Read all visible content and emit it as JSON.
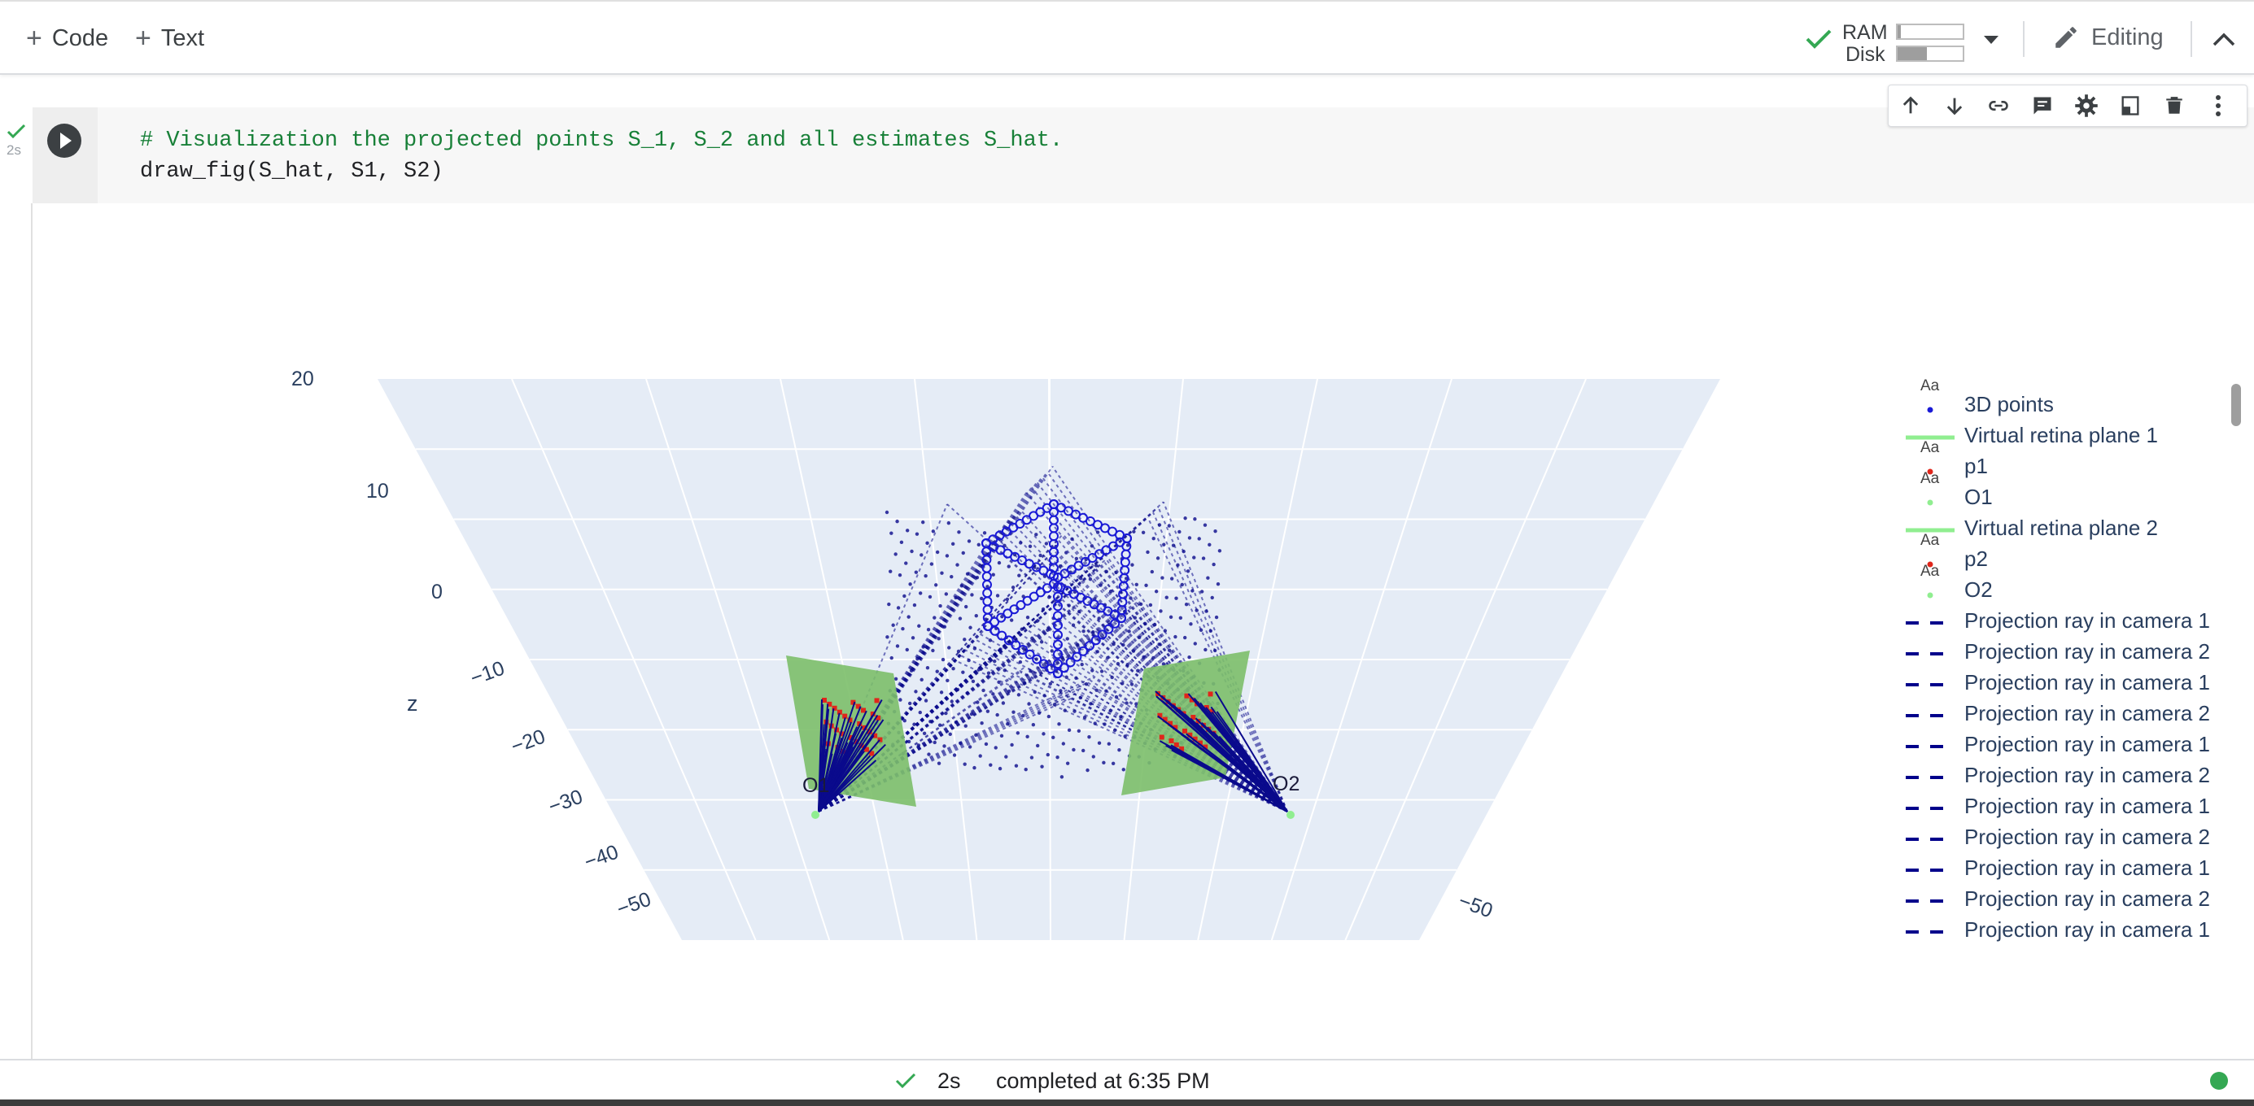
{
  "toolbar": {
    "add_code_label": "Code",
    "add_text_label": "Text",
    "ram_label": "RAM",
    "disk_label": "Disk",
    "ram_usage": 0.05,
    "disk_usage": 0.45,
    "editing_label": "Editing"
  },
  "cell": {
    "exec_time": "2s",
    "code_lines": [
      "# Visualization the projected points S_1, S_2 and all estimates S_hat.",
      "draw_fig(S_hat, S1, S2)"
    ],
    "comment_color": "#188038"
  },
  "plot": {
    "z_axis_title": "z",
    "z_ticks": [
      "20",
      "10",
      "0",
      "−10",
      "−20",
      "−30",
      "−40",
      "−50"
    ],
    "x_tick_right": "−50",
    "camera_labels": [
      "O1",
      "O2"
    ],
    "colors": {
      "scene_bg": "#e5ecf6",
      "points": "#1a1ad6",
      "rays": "#0a0a8c",
      "plane": "#7cbf6a",
      "projected": "#e0261b"
    }
  },
  "legend": {
    "items": [
      {
        "label": "3D points",
        "type": "marker",
        "color": "#1a1ad6"
      },
      {
        "label": "Virtual retina plane 1",
        "type": "line",
        "color": "#90ee90"
      },
      {
        "label": "p1",
        "type": "marker",
        "color": "#e0261b"
      },
      {
        "label": "O1",
        "type": "marker",
        "color": "#90ee90"
      },
      {
        "label": "Virtual retina plane 2",
        "type": "line",
        "color": "#90ee90"
      },
      {
        "label": "p2",
        "type": "marker",
        "color": "#e0261b"
      },
      {
        "label": "O2",
        "type": "marker",
        "color": "#90ee90"
      },
      {
        "label": "Projection ray in camera 1",
        "type": "dash",
        "color": "#00008b"
      },
      {
        "label": "Projection ray in camera 2",
        "type": "dash",
        "color": "#00008b"
      },
      {
        "label": "Projection ray in camera 1",
        "type": "dash",
        "color": "#00008b"
      },
      {
        "label": "Projection ray in camera 2",
        "type": "dash",
        "color": "#00008b"
      },
      {
        "label": "Projection ray in camera 1",
        "type": "dash",
        "color": "#00008b"
      },
      {
        "label": "Projection ray in camera 2",
        "type": "dash",
        "color": "#00008b"
      },
      {
        "label": "Projection ray in camera 1",
        "type": "dash",
        "color": "#00008b"
      },
      {
        "label": "Projection ray in camera 2",
        "type": "dash",
        "color": "#00008b"
      },
      {
        "label": "Projection ray in camera 1",
        "type": "dash",
        "color": "#00008b"
      },
      {
        "label": "Projection ray in camera 2",
        "type": "dash",
        "color": "#00008b"
      },
      {
        "label": "Projection ray in camera 1",
        "type": "dash",
        "color": "#00008b"
      }
    ],
    "marker_text": "Aa"
  },
  "status": {
    "duration": "2s",
    "completed_text": "completed at 6:35 PM",
    "connected_color": "#34a853"
  }
}
